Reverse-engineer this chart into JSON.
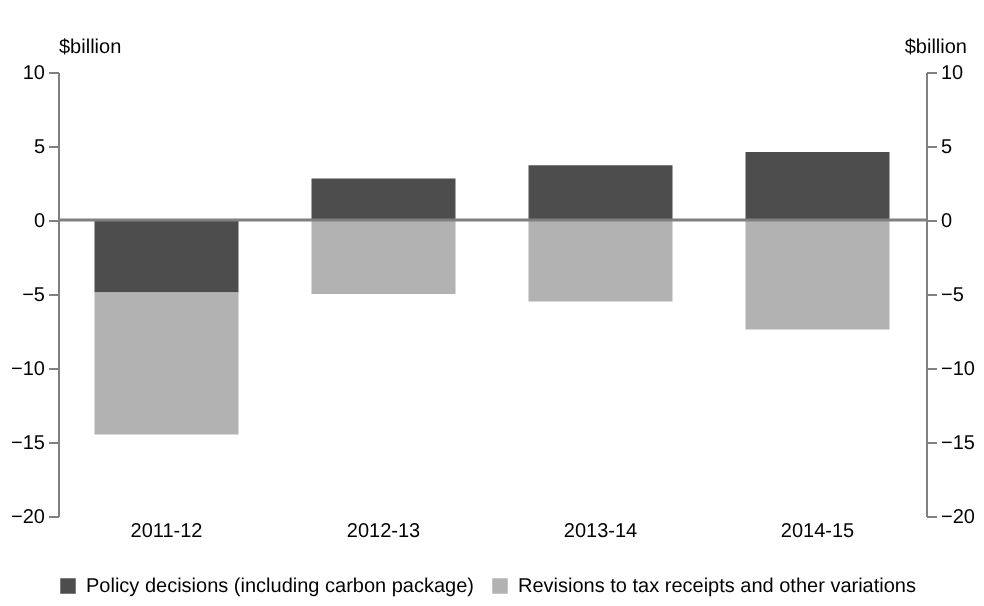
{
  "chart_data": {
    "type": "bar",
    "stacked": true,
    "ylabel": "$billion",
    "y2label": "$billion",
    "categories": [
      "2011-12",
      "2012-13",
      "2013-14",
      "2014-15"
    ],
    "series": [
      {
        "name": "Policy decisions (including carbon package)",
        "color": "#4d4d4d",
        "values": [
          -4.9,
          2.8,
          3.7,
          4.6
        ]
      },
      {
        "name": "Revisions to tax receipts and other variations",
        "color": "#b2b2b2",
        "values": [
          -9.6,
          -5.0,
          -5.5,
          -7.4
        ]
      }
    ],
    "ylim": [
      -20,
      10
    ],
    "yticks": [
      -20,
      -15,
      -10,
      -5,
      0,
      5,
      10
    ],
    "y2lim": [
      -20,
      10
    ],
    "y2ticks": [
      -20,
      -15,
      -10,
      -5,
      0,
      5,
      10
    ],
    "ref_lines": [
      {
        "axis": "y",
        "value": 0,
        "color": "#808080"
      }
    ],
    "grid": false,
    "legend": "bottom"
  }
}
